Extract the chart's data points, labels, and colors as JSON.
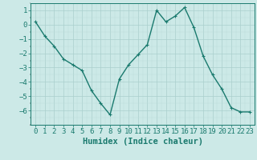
{
  "x": [
    0,
    1,
    2,
    3,
    4,
    5,
    6,
    7,
    8,
    9,
    10,
    11,
    12,
    13,
    14,
    15,
    16,
    17,
    18,
    19,
    20,
    21,
    22,
    23
  ],
  "y": [
    0.2,
    -0.8,
    -1.5,
    -2.4,
    -2.8,
    -3.2,
    -4.6,
    -5.5,
    -6.3,
    -3.8,
    -2.8,
    -2.1,
    -1.4,
    1.0,
    0.2,
    0.6,
    1.2,
    -0.2,
    -2.2,
    -3.5,
    -4.5,
    -5.8,
    -6.1,
    -6.1
  ],
  "line_color": "#1a7a6e",
  "marker": "+",
  "bg_color": "#cce9e7",
  "grid_major_color": "#aacfcc",
  "grid_minor_color": "#bddbd9",
  "xlabel": "Humidex (Indice chaleur)",
  "ylim": [
    -7,
    1.5
  ],
  "xlim": [
    -0.5,
    23.5
  ],
  "yticks": [
    1,
    0,
    -1,
    -2,
    -3,
    -4,
    -5,
    -6
  ],
  "xticks": [
    0,
    1,
    2,
    3,
    4,
    5,
    6,
    7,
    8,
    9,
    10,
    11,
    12,
    13,
    14,
    15,
    16,
    17,
    18,
    19,
    20,
    21,
    22,
    23
  ],
  "xlabel_fontsize": 7.5,
  "tick_fontsize": 6.5,
  "linewidth": 1.0,
  "markersize": 3.5
}
